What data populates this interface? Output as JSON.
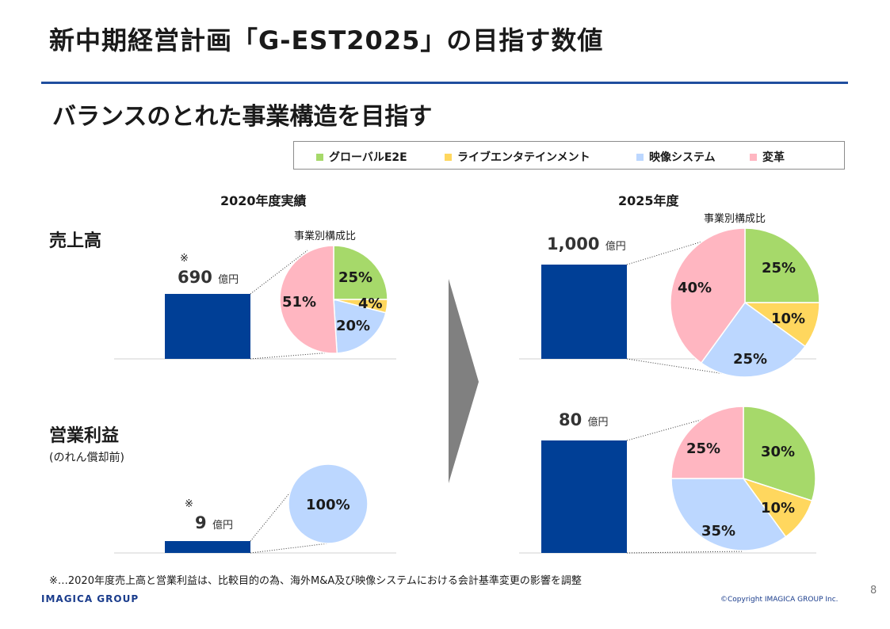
{
  "title": "新中期経営計画「G-EST2025」の目指す数値",
  "subtitle": "バランスのとれた事業構造を目指す",
  "legend": [
    {
      "label": "グローバルE2E",
      "color": "#a6d96a"
    },
    {
      "label": "ライブエンタテインメント",
      "color": "#ffd75e"
    },
    {
      "label": "映像システム",
      "color": "#bcd7ff"
    },
    {
      "label": "変革",
      "color": "#ffb6c1"
    }
  ],
  "columns": {
    "left": "2020年度実績",
    "right": "2025年度"
  },
  "composition_label": "事業別構成比",
  "rows": {
    "sales": {
      "label": "売上高"
    },
    "op": {
      "label": "営業利益",
      "note": "(のれん償却前)"
    }
  },
  "values": {
    "sales_2020": {
      "num": "690",
      "unit": "億円",
      "mark": "※"
    },
    "sales_2025": {
      "num": "1,000",
      "unit": "億円"
    },
    "op_2020": {
      "num": "9",
      "unit": "億円",
      "mark": "※"
    },
    "op_2025": {
      "num": "80",
      "unit": "億円"
    }
  },
  "chart_data": [
    {
      "type": "bar",
      "title": "売上高 2020年度実績",
      "values": [
        690
      ],
      "unit": "億円"
    },
    {
      "type": "pie",
      "title": "売上高 2020年度 事業別構成比",
      "categories": [
        "グローバルE2E",
        "ライブエンタテインメント",
        "映像システム",
        "変革"
      ],
      "values": [
        25,
        4,
        20,
        51
      ],
      "labels": [
        "25%",
        "4%",
        "20%",
        "51%"
      ]
    },
    {
      "type": "bar",
      "title": "売上高 2025年度",
      "values": [
        1000
      ],
      "unit": "億円"
    },
    {
      "type": "pie",
      "title": "売上高 2025年度 事業別構成比",
      "categories": [
        "グローバルE2E",
        "ライブエンタテインメント",
        "映像システム",
        "変革"
      ],
      "values": [
        25,
        10,
        25,
        40
      ],
      "labels": [
        "25%",
        "10%",
        "25%",
        "40%"
      ]
    },
    {
      "type": "bar",
      "title": "営業利益 2020年度実績",
      "values": [
        9
      ],
      "unit": "億円"
    },
    {
      "type": "pie",
      "title": "営業利益 2020年度",
      "categories": [
        "映像システム"
      ],
      "values": [
        100
      ],
      "labels": [
        "100%"
      ]
    },
    {
      "type": "bar",
      "title": "営業利益 2025年度",
      "values": [
        80
      ],
      "unit": "億円"
    },
    {
      "type": "pie",
      "title": "営業利益 2025年度 事業別構成比",
      "categories": [
        "グローバルE2E",
        "ライブエンタテインメント",
        "映像システム",
        "変革"
      ],
      "values": [
        30,
        10,
        35,
        25
      ],
      "labels": [
        "30%",
        "10%",
        "35%",
        "25%"
      ]
    }
  ],
  "footnote": "※…2020年度売上高と営業利益は、比較目的の為、海外M&A及び映像システムにおける会計基準変更の影響を調整",
  "logo": "IMAGICA GROUP",
  "copyright": "©Copyright IMAGICA GROUP Inc.",
  "page_number": "8"
}
